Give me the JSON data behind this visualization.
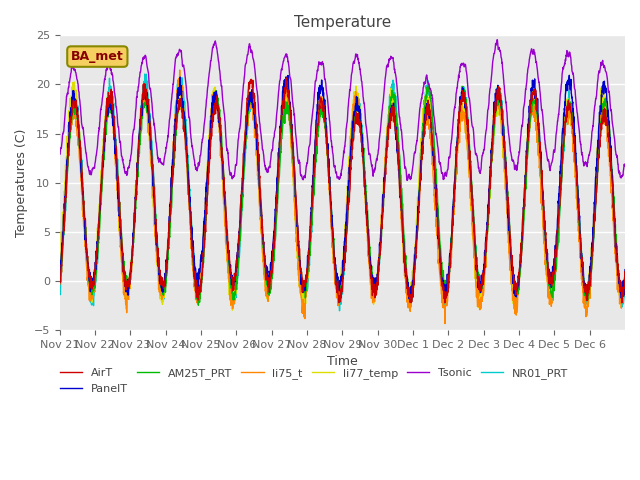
{
  "title": "Temperature",
  "ylabel": "Temperatures (C)",
  "xlabel": "Time",
  "annotation": "BA_met",
  "ylim": [
    -5,
    25
  ],
  "bg_color": "#e8e8e8",
  "fig_color": "#ffffff",
  "grid_color": "#ffffff",
  "series_colors": {
    "AirT": "#cc0000",
    "PanelT": "#0000cc",
    "AM25T_PRT": "#00bb00",
    "li75_t": "#ff8800",
    "li77_temp": "#dddd00",
    "Tsonic": "#9900cc",
    "NR01_PRT": "#00cccc"
  },
  "xtick_labels": [
    "Nov 21",
    "Nov 22",
    "Nov 23",
    "Nov 24",
    "Nov 25",
    "Nov 26",
    "Nov 27",
    "Nov 28",
    "Nov 29",
    "Nov 30",
    "Dec 1",
    "Dec 2",
    "Dec 3",
    "Dec 4",
    "Dec 5",
    "Dec 6"
  ],
  "linewidth": 1.0
}
